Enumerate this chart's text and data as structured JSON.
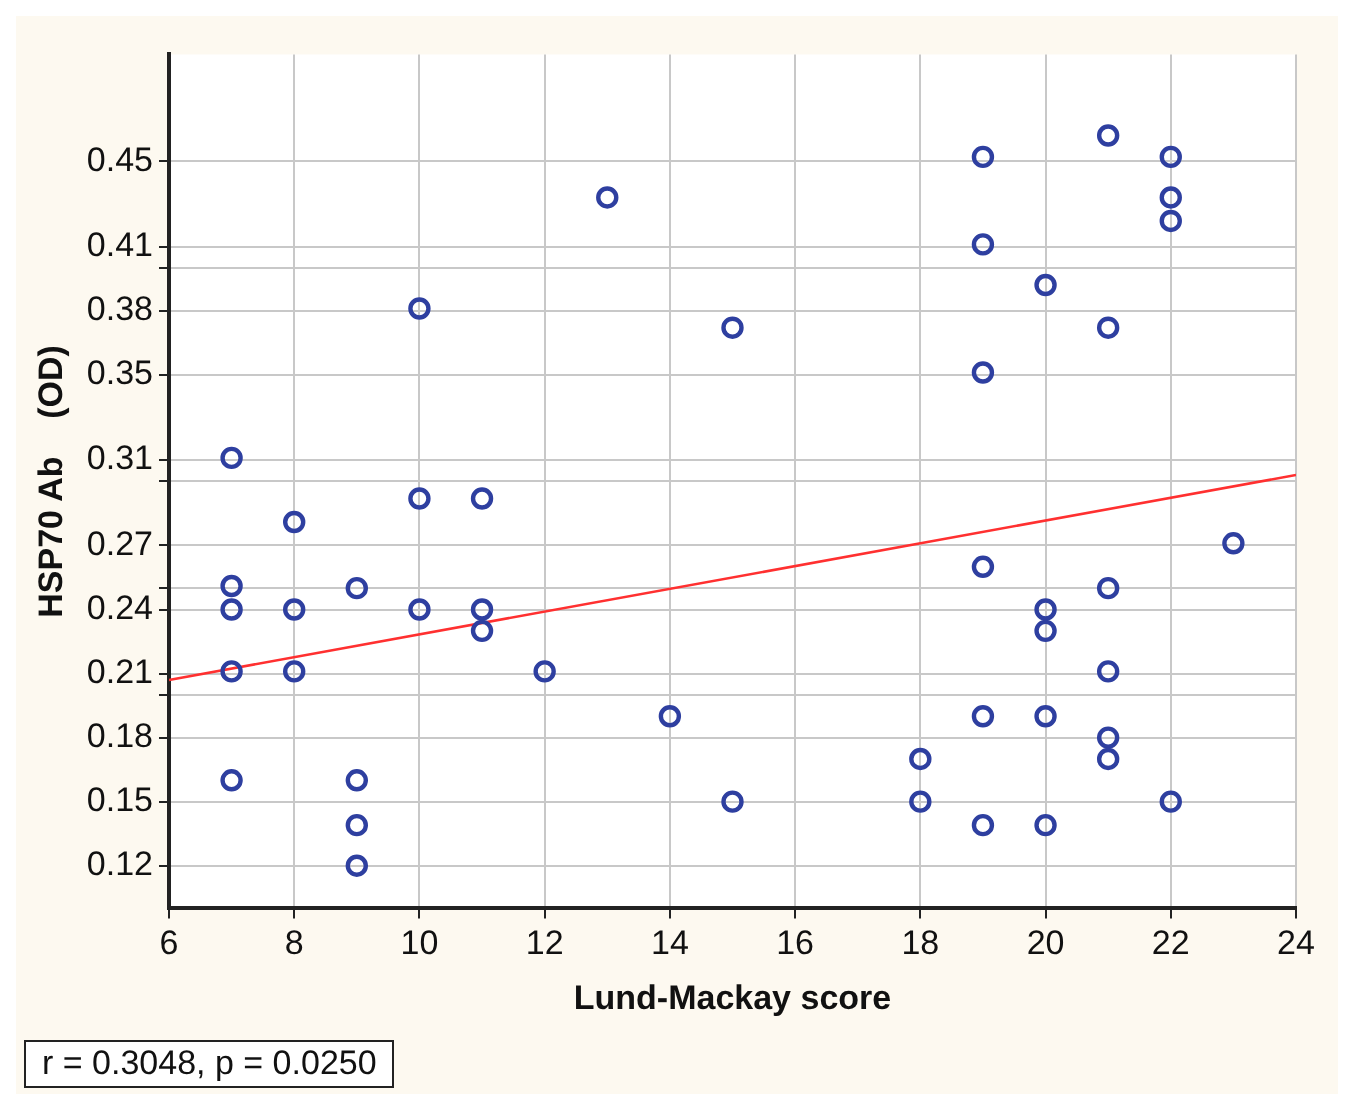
{
  "chart_data": {
    "type": "scatter",
    "xlabel": "Lund-Mackay score",
    "ylabel": "HSP70 Ab    (OD)",
    "annotations": [
      "r = 0.3048, p = 0.0250"
    ],
    "xlim": [
      6,
      24
    ],
    "xticks": [
      6,
      8,
      10,
      12,
      14,
      16,
      18,
      20,
      22,
      24
    ],
    "ylim": [
      0.1,
      0.5
    ],
    "yticks": [
      0.12,
      0.15,
      0.18,
      {
        "value": 0.2,
        "label": null
      },
      0.21,
      0.24,
      {
        "value": 0.25,
        "label": null
      },
      0.27,
      {
        "value": 0.3,
        "label": null
      },
      0.31,
      0.35,
      0.38,
      {
        "value": 0.4,
        "label": null
      },
      0.41,
      0.45
    ],
    "grid": true,
    "marker": "circle",
    "series": [
      {
        "color": "#2e3fa0",
        "x": [
          7,
          7,
          7,
          7,
          7,
          8,
          8,
          8,
          9,
          9,
          9,
          9,
          10,
          10,
          10,
          11,
          11,
          11,
          12,
          13,
          14,
          15,
          15,
          18,
          18,
          19,
          19,
          19,
          19,
          19,
          19,
          20,
          20,
          20,
          20,
          20,
          21,
          21,
          21,
          21,
          21,
          21,
          22,
          22,
          22,
          22,
          23
        ],
        "values": [
          0.311,
          0.251,
          0.24,
          0.211,
          0.16,
          0.281,
          0.24,
          0.211,
          0.25,
          0.16,
          0.139,
          0.12,
          0.381,
          0.292,
          0.24,
          0.292,
          0.24,
          0.23,
          0.211,
          0.433,
          0.19,
          0.372,
          0.15,
          0.17,
          0.15,
          0.452,
          0.411,
          0.351,
          0.26,
          0.19,
          0.139,
          0.392,
          0.24,
          0.23,
          0.19,
          0.139,
          0.462,
          0.372,
          0.25,
          0.211,
          0.18,
          0.17,
          0.452,
          0.433,
          0.422,
          0.15,
          0.271
        ]
      },
      {
        "type": "line",
        "color": "#ff3030",
        "x": [
          6,
          24
        ],
        "values": [
          0.207,
          0.303
        ],
        "marker": "none"
      }
    ]
  }
}
